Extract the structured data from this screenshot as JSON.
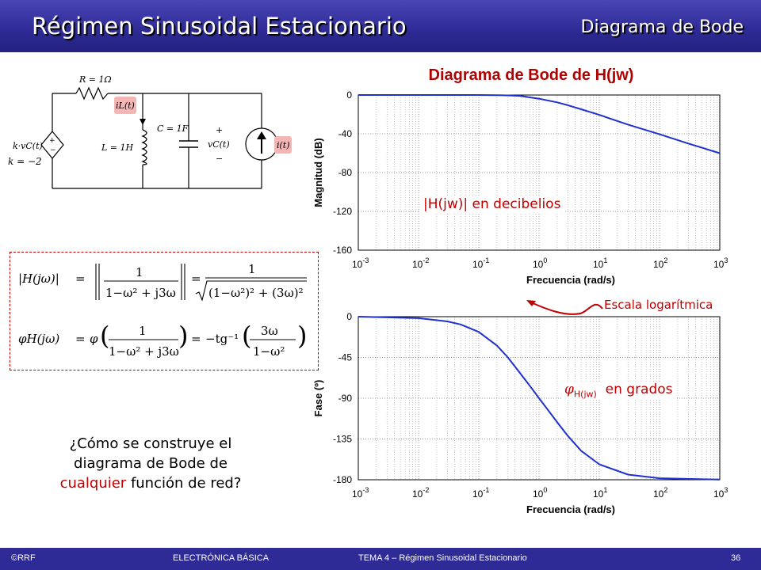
{
  "header": {
    "title": "Régimen Sinusoidal Estacionario",
    "section": "Diagrama de Bode"
  },
  "bode": {
    "title": "Diagrama de Bode de H(jw)"
  },
  "circuit": {
    "resistor": "R = 1Ω",
    "inductor_current": "iL(t)",
    "capacitor": "C = 1F",
    "inductor": "L = 1H",
    "cap_voltage": "vC(t)",
    "plus": "+",
    "minus": "−",
    "source_label": "k·vC(t)",
    "gain": "k = −2",
    "current_source": "i(t)"
  },
  "formula": {
    "magnitude_lhs": "|H(jω)|",
    "eq": "=",
    "one": "1",
    "mag_denominator": "1−ω² + j3ω",
    "mag_sqrt": "(1−ω²)² + (3ω)²",
    "phase_lhs": "φH(jω)",
    "phi": "φ",
    "phase_rhs": "−tg⁻¹",
    "phase_num": "3ω",
    "phase_den": "1−ω²"
  },
  "question": {
    "line1": "¿Cómo se construye el",
    "line2": "diagrama de Bode de",
    "emphasis": "cualquier",
    "line3_rest": " función de red?"
  },
  "annotations": {
    "magnitude": "|H(jw)| en decibelios",
    "scale": "Escala logarítmica",
    "phase_symbol": "φ",
    "phase_sub": "H(jw)",
    "phase_text": "en grados"
  },
  "footer": {
    "left": "©RRF",
    "middle": "ELECTRÓNICA BÁSICA",
    "right": "TEMA 4 – Régimen Sinusoidal Estacionario",
    "page": "36"
  },
  "chart_data": [
    {
      "type": "line",
      "title": "",
      "xlabel": "Frecuencia (rad/s)",
      "ylabel": "Magnitud (dB)",
      "xscale": "log",
      "xlim": [
        0.001,
        1000
      ],
      "ylim": [
        -160,
        0
      ],
      "xticks": [
        "10-3",
        "10-2",
        "10-1",
        "100",
        "101",
        "102",
        "103"
      ],
      "yticks": [
        "0",
        "-40",
        "-80",
        "-120",
        "-160"
      ],
      "grid": true,
      "color": "#1f2fd0",
      "series": [
        {
          "x": [
            0.001,
            0.01,
            0.03,
            0.1,
            0.2,
            0.33,
            0.5,
            1,
            2,
            3,
            5,
            10,
            30,
            100,
            300,
            1000
          ],
          "y": [
            0,
            0,
            0,
            -0.04,
            -0.2,
            -0.5,
            -1.1,
            -3.8,
            -7.6,
            -10.5,
            -14.7,
            -20.5,
            -30.5,
            -40.5,
            -50,
            -60
          ]
        }
      ]
    },
    {
      "type": "line",
      "title": "",
      "xlabel": "Frecuencia (rad/s)",
      "ylabel": "Fase (º)",
      "xscale": "log",
      "xlim": [
        0.001,
        1000
      ],
      "ylim": [
        -180,
        0
      ],
      "xticks": [
        "10-3",
        "10-2",
        "10-1",
        "100",
        "101",
        "102",
        "103"
      ],
      "yticks": [
        "0",
        "-45",
        "-90",
        "-135",
        "-180"
      ],
      "grid": true,
      "color": "#1f2fd0",
      "series": [
        {
          "x": [
            0.001,
            0.01,
            0.03,
            0.05,
            0.1,
            0.2,
            0.3,
            0.5,
            0.7,
            1,
            1.5,
            2,
            3,
            5,
            10,
            30,
            100,
            1000
          ],
          "y": [
            0,
            -1.7,
            -5.2,
            -8.6,
            -16.9,
            -32,
            -44.6,
            -63.4,
            -76.2,
            -90,
            -105.5,
            -116.6,
            -131.6,
            -148,
            -163,
            -174.3,
            -178.3,
            -179.8
          ]
        }
      ]
    }
  ]
}
